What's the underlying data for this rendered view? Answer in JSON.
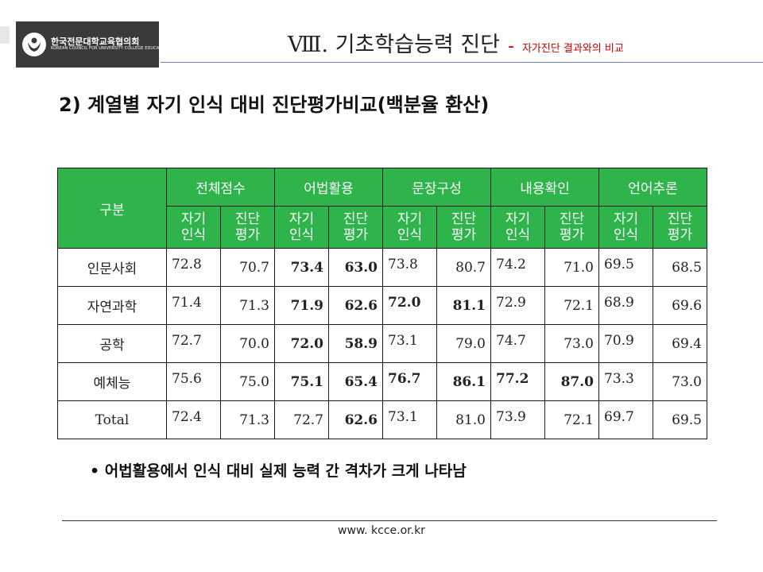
{
  "header": {
    "org_name_ko": "한국전문대학교육협의회",
    "org_name_en": "KOREAN COUNCIL FOR UNIVERSITY COLLEGE EDUCATION",
    "section_title": "Ⅷ. 기초학습능력 진단",
    "section_dash": "-",
    "section_subtitle": "자가진단 결과와의 비교"
  },
  "title": "2) 계열별 자기 인식 대비 진단평가비교(백분율 환산)",
  "table": {
    "corner_label": "구분",
    "groups": [
      "전체점수",
      "어법활용",
      "문장구성",
      "내용확인",
      "언어추론"
    ],
    "subheaders": [
      "자기\n인식",
      "진단\n평가"
    ],
    "rows": [
      {
        "label": "인문사회",
        "values": [
          "72.8",
          "70.7",
          "73.4",
          "63.0",
          "73.8",
          "80.7",
          "74.2",
          "71.0",
          "69.5",
          "68.5"
        ]
      },
      {
        "label": "자연과학",
        "values": [
          "71.4",
          "71.3",
          "71.9",
          "62.6",
          "72.0",
          "81.1",
          "72.9",
          "72.1",
          "68.9",
          "69.6"
        ]
      },
      {
        "label": "공학",
        "values": [
          "72.7",
          "70.0",
          "72.0",
          "58.9",
          "73.1",
          "79.0",
          "74.7",
          "73.0",
          "70.9",
          "69.4"
        ]
      },
      {
        "label": "예체능",
        "values": [
          "75.6",
          "75.0",
          "75.1",
          "65.4",
          "76.7",
          "86.1",
          "77.2",
          "87.0",
          "73.3",
          "73.0"
        ]
      },
      {
        "label": "Total",
        "values": [
          "72.4",
          "71.3",
          "72.7",
          "62.6",
          "73.1",
          "81.0",
          "73.9",
          "72.1",
          "69.7",
          "69.5"
        ]
      }
    ]
  },
  "bullet": "• 어법활용에서 인식 대비 실제 능력 간 격차가 크게 나타남",
  "footer": {
    "url": "www. kcce.or.kr"
  },
  "colors": {
    "table_header": "#2eb44a",
    "section_subtitle": "#c00000",
    "header_line": "#6b83a8"
  }
}
